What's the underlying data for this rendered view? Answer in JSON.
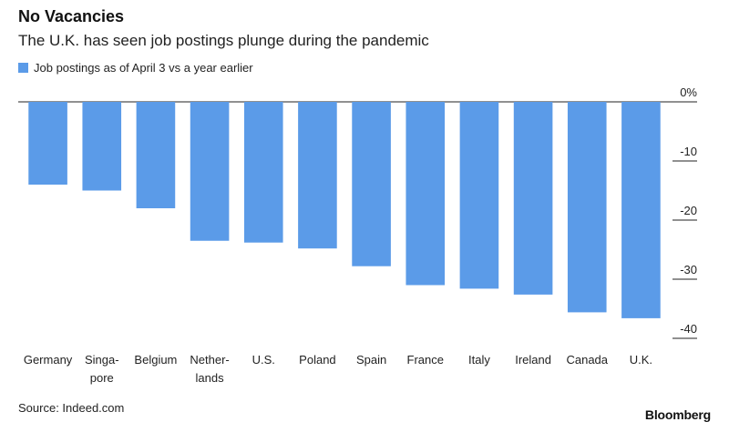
{
  "chart_data": {
    "type": "bar",
    "title": "No Vacancies",
    "subtitle": "The U.K. has seen job postings plunge during the pandemic",
    "legend": "Job postings as of April 3 vs a year earlier",
    "categories": [
      [
        "Germany"
      ],
      [
        "Singa-",
        "pore"
      ],
      [
        "Belgium"
      ],
      [
        "Nether-",
        "lands"
      ],
      [
        "U.S."
      ],
      [
        "Poland"
      ],
      [
        "Spain"
      ],
      [
        "France"
      ],
      [
        "Italy"
      ],
      [
        "Ireland"
      ],
      [
        "Canada"
      ],
      [
        "U.K."
      ]
    ],
    "values": [
      -14,
      -15,
      -18,
      -23.5,
      -23.8,
      -24.8,
      -27.8,
      -31,
      -31.6,
      -32.6,
      -35.6,
      -36.6
    ],
    "ylim": [
      -40,
      0
    ],
    "yticks": [
      0,
      -10,
      -20,
      -30,
      -40
    ],
    "ytick_labels": [
      "0%",
      "-10",
      "-20",
      "-30",
      "-40"
    ],
    "xlabel": "",
    "ylabel": "",
    "color": "#5b9be8",
    "source": "Source: Indeed.com",
    "brand": "Bloomberg"
  }
}
